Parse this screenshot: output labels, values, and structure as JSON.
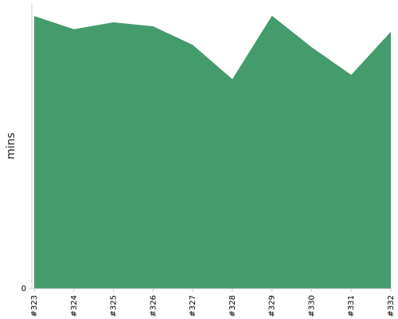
{
  "chart_data": {
    "type": "area",
    "categories": [
      "#323",
      "#324",
      "#325",
      "#326",
      "#327",
      "#328",
      "#329",
      "#330",
      "#331",
      "#332"
    ],
    "x": [
      "#323",
      "#324",
      "#325",
      "#326",
      "#327",
      "#328",
      "#329",
      "#330",
      "#331",
      "#332"
    ],
    "series": [
      {
        "values": [
          95.5,
          90.9,
          93.3,
          91.9,
          85.4,
          73.4,
          95.6,
          84.6,
          74.9,
          90.0
        ],
        "color": "#449b6c"
      }
    ],
    "xlabel": "",
    "ylabel": "mins",
    "ylim": [
      0,
      100
    ],
    "y_ticks": [
      "0"
    ],
    "grid": false,
    "legend": "none"
  }
}
